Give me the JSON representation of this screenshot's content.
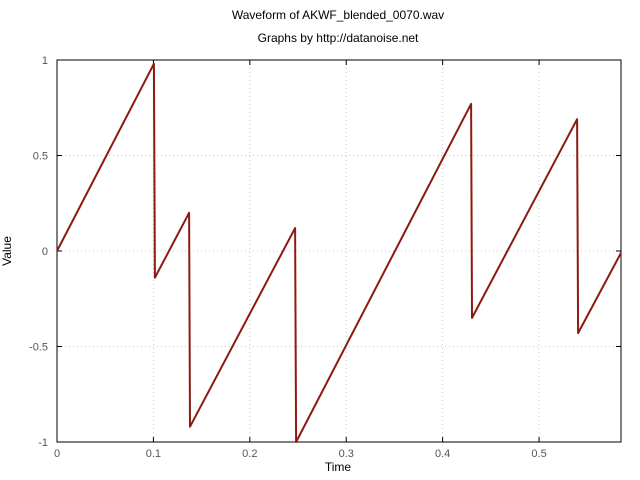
{
  "chart_data": {
    "type": "line",
    "title": "Waveform of AKWF_blended_0070.wav",
    "subtitle": "Graphs by http://datanoise.net",
    "xlabel": "Time",
    "ylabel": "Value",
    "xlim": [
      0,
      0.585
    ],
    "ylim": [
      -1,
      1
    ],
    "xticks": [
      0,
      0.1,
      0.2,
      0.3,
      0.4,
      0.5
    ],
    "xtick_labels": [
      "0",
      "0.1",
      "0.2",
      "0.3",
      "0.4",
      "0.5"
    ],
    "yticks": [
      1,
      0.5,
      0,
      -0.5,
      -1
    ],
    "ytick_labels": [
      "1",
      "0.5",
      "0",
      "-0.5",
      "-1"
    ],
    "grid": true,
    "line_color": "#8b1a10",
    "series": [
      {
        "x": [
          0,
          0.1005,
          0.1015,
          0.137,
          0.138,
          0.247,
          0.248,
          0.4295,
          0.4305,
          0.5395,
          0.5405,
          0.585
        ],
        "y": [
          0,
          0.98,
          -0.14,
          0.2,
          -0.92,
          0.12,
          -1.0,
          0.77,
          -0.35,
          0.69,
          -0.43,
          -0.01
        ]
      }
    ]
  }
}
